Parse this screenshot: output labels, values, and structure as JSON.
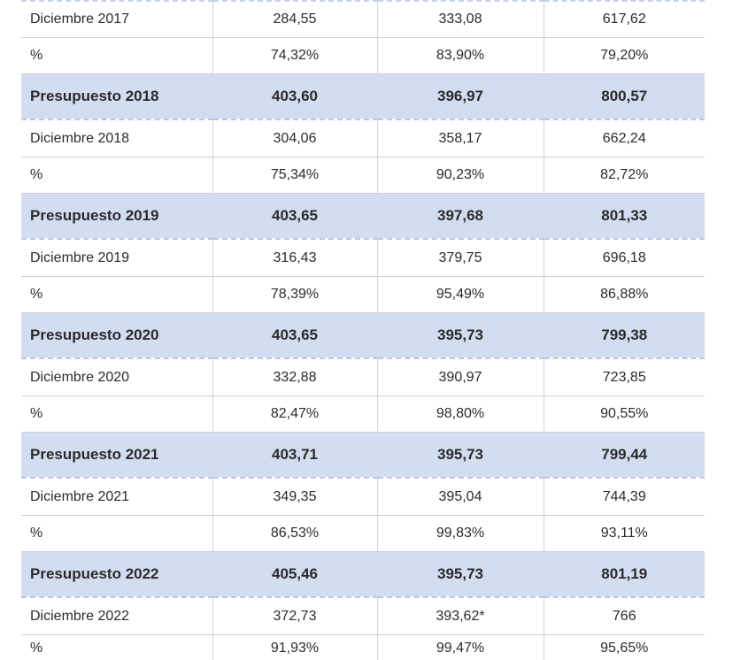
{
  "table": {
    "rows": [
      {
        "kind": "dec",
        "label": "Diciembre 2017",
        "c1": "284,55",
        "c2": "333,08",
        "c3": "617,62"
      },
      {
        "kind": "pct",
        "label": "%",
        "c1": "74,32%",
        "c2": "83,90%",
        "c3": "79,20%"
      },
      {
        "kind": "budget",
        "label": "Presupuesto 2018",
        "c1": "403,60",
        "c2": "396,97",
        "c3": "800,57"
      },
      {
        "kind": "dec",
        "label": "Diciembre 2018",
        "c1": "304,06",
        "c2": "358,17",
        "c3": "662,24"
      },
      {
        "kind": "pct",
        "label": "%",
        "c1": "75,34%",
        "c2": "90,23%",
        "c3": "82,72%"
      },
      {
        "kind": "budget",
        "label": "Presupuesto 2019",
        "c1": "403,65",
        "c2": "397,68",
        "c3": "801,33"
      },
      {
        "kind": "dec",
        "label": "Diciembre 2019",
        "c1": "316,43",
        "c2": "379,75",
        "c3": "696,18"
      },
      {
        "kind": "pct",
        "label": "%",
        "c1": "78,39%",
        "c2": "95,49%",
        "c3": "86,88%"
      },
      {
        "kind": "budget",
        "label": "Presupuesto 2020",
        "c1": "403,65",
        "c2": "395,73",
        "c3": "799,38"
      },
      {
        "kind": "dec",
        "label": "Diciembre 2020",
        "c1": "332,88",
        "c2": "390,97",
        "c3": "723,85"
      },
      {
        "kind": "pct",
        "label": "%",
        "c1": "82,47%",
        "c2": "98,80%",
        "c3": "90,55%"
      },
      {
        "kind": "budget",
        "label": "Presupuesto 2021",
        "c1": "403,71",
        "c2": "395,73",
        "c3": "799,44"
      },
      {
        "kind": "dec",
        "label": "Diciembre 2021",
        "c1": "349,35",
        "c2": "395,04",
        "c3": "744,39"
      },
      {
        "kind": "pct",
        "label": "%",
        "c1": "86,53%",
        "c2": "99,83%",
        "c3": "93,11%"
      },
      {
        "kind": "budget",
        "label": "Presupuesto 2022",
        "c1": "405,46",
        "c2": "395,73",
        "c3": "801,19"
      },
      {
        "kind": "dec",
        "label": "Diciembre 2022",
        "c1": "372,73",
        "c2": "393,62*",
        "c3": "766"
      },
      {
        "kind": "pct",
        "label": "%",
        "c1": "91,93%",
        "c2": "99,47%",
        "c3": "95,65%"
      }
    ]
  }
}
